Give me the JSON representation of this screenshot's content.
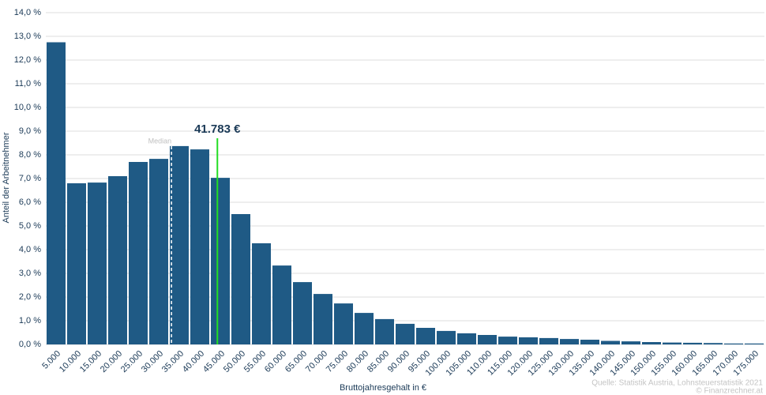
{
  "chart_data": {
    "type": "bar",
    "y_label": "Anteil der Arbeitnehmer",
    "x_label": "Bruttojahresgehalt in €",
    "categories": [
      "5.000",
      "10.000",
      "15.000",
      "20.000",
      "25.000",
      "30.000",
      "35.000",
      "40.000",
      "45.000",
      "50.000",
      "55.000",
      "60.000",
      "65.000",
      "70.000",
      "75.000",
      "80.000",
      "85.000",
      "90.000",
      "95.000",
      "100.000",
      "105.000",
      "110.000",
      "115.000",
      "120.000",
      "125.000",
      "130.000",
      "135.000",
      "140.000",
      "145.000",
      "150.000",
      "155.000",
      "160.000",
      "165.000",
      "170.000",
      "175.000"
    ],
    "values": [
      12.75,
      6.8,
      6.83,
      7.1,
      7.7,
      7.83,
      8.37,
      8.23,
      7.03,
      5.5,
      4.27,
      3.33,
      2.63,
      2.13,
      1.73,
      1.33,
      1.07,
      0.87,
      0.7,
      0.57,
      0.47,
      0.4,
      0.33,
      0.3,
      0.27,
      0.23,
      0.2,
      0.15,
      0.13,
      0.1,
      0.08,
      0.07,
      0.06,
      0.04,
      0.04
    ],
    "color": "#1f5a85",
    "xlim": [
      0,
      175000
    ],
    "ylim": [
      0,
      14
    ],
    "yticks": [
      {
        "value": 0,
        "label": "0,0 %"
      },
      {
        "value": 1,
        "label": "1,0 %"
      },
      {
        "value": 2,
        "label": "2,0 %"
      },
      {
        "value": 3,
        "label": "3,0 %"
      },
      {
        "value": 4,
        "label": "4,0 %"
      },
      {
        "value": 5,
        "label": "5,0 %"
      },
      {
        "value": 6,
        "label": "6,0 %"
      },
      {
        "value": 7,
        "label": "7,0 %"
      },
      {
        "value": 8,
        "label": "8,0 %"
      },
      {
        "value": 9,
        "label": "9,0 %"
      },
      {
        "value": 10,
        "label": "10,0 %"
      },
      {
        "value": 11,
        "label": "11,0 %"
      },
      {
        "value": 12,
        "label": "12,0 %"
      },
      {
        "value": 13,
        "label": "13,0 %"
      },
      {
        "value": 14,
        "label": "14,0 %"
      }
    ],
    "grid": true,
    "median": {
      "label": "Median",
      "value": 30600
    },
    "average": {
      "label": "41.783 €",
      "value": 41783
    },
    "source": [
      "Quelle: Statistik Austria, Lohnsteuerstatistik 2021",
      "© Finanzrechner.at"
    ]
  }
}
